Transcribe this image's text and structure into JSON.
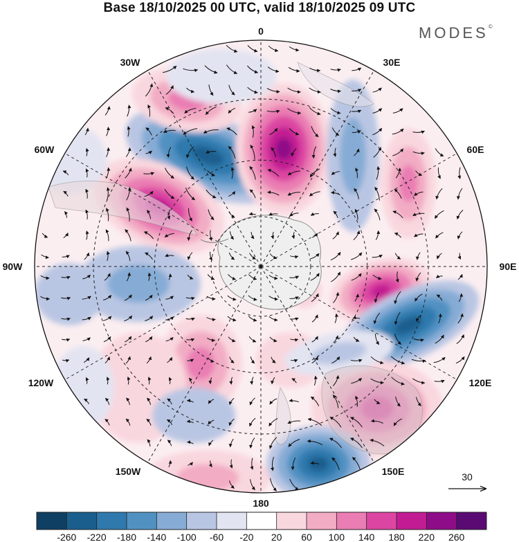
{
  "title": "Base 18/10/2025 00 UTC, valid 18/10/2025 09 UTC",
  "brand": "MODES",
  "brand_mark": "©",
  "longitude_labels": {
    "lon_0": "0",
    "lon_30e": "30E",
    "lon_60e": "60E",
    "lon_90e": "90E",
    "lon_120e": "120E",
    "lon_150e": "150E",
    "lon_180": "180",
    "lon_150w": "150W",
    "lon_120w": "120W",
    "lon_90w": "90W",
    "lon_60w": "60W",
    "lon_30w": "30W"
  },
  "reference_vector": {
    "label": "30",
    "icon": "arrow-right-icon"
  },
  "colorbar": {
    "ticks": [
      "-260",
      "-220",
      "-180",
      "-140",
      "-100",
      "-60",
      "-20",
      "20",
      "60",
      "100",
      "140",
      "180",
      "220",
      "260"
    ],
    "colors": [
      "#0f3f63",
      "#1a5e8e",
      "#2f79ad",
      "#5191c2",
      "#86acd5",
      "#b9c6e3",
      "#e3e4f1",
      "#ffffff",
      "#f9d7de",
      "#f2acc4",
      "#ea7db3",
      "#dc46a2",
      "#c21c93",
      "#8e0c87",
      "#5a0a73"
    ]
  },
  "colors": {
    "land": "#efefef",
    "coast": "#8a8a8a",
    "grid": "#222222"
  }
}
